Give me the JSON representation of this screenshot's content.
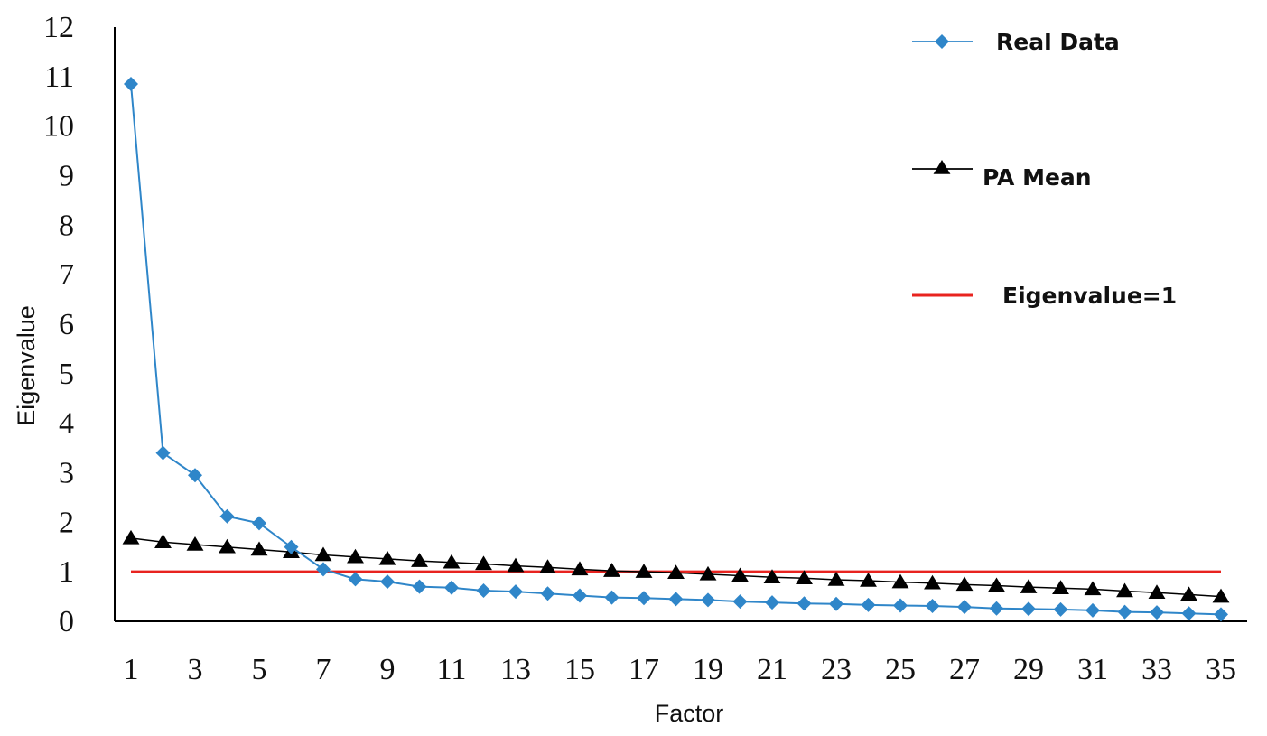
{
  "chart_data": {
    "type": "line",
    "xlabel": "Factor",
    "ylabel": "Eigenvalue",
    "x": [
      1,
      2,
      3,
      4,
      5,
      6,
      7,
      8,
      9,
      10,
      11,
      12,
      13,
      14,
      15,
      16,
      17,
      18,
      19,
      20,
      21,
      22,
      23,
      24,
      25,
      26,
      27,
      28,
      29,
      30,
      31,
      32,
      33,
      34,
      35
    ],
    "x_ticks": [
      1,
      3,
      5,
      7,
      9,
      11,
      13,
      15,
      17,
      19,
      21,
      23,
      25,
      27,
      29,
      31,
      33,
      35
    ],
    "ylim": [
      0,
      12
    ],
    "y_ticks": [
      0,
      1,
      2,
      3,
      4,
      5,
      6,
      7,
      8,
      9,
      10,
      11,
      12
    ],
    "grid": false,
    "legend_position": "top-right",
    "series": [
      {
        "name": "Real Data",
        "color": "#2f86c9",
        "marker": "diamond",
        "values": [
          10.85,
          3.4,
          2.95,
          2.12,
          1.98,
          1.5,
          1.05,
          0.85,
          0.8,
          0.7,
          0.68,
          0.62,
          0.6,
          0.56,
          0.52,
          0.48,
          0.47,
          0.45,
          0.43,
          0.4,
          0.38,
          0.36,
          0.35,
          0.33,
          0.32,
          0.31,
          0.29,
          0.26,
          0.25,
          0.24,
          0.22,
          0.19,
          0.18,
          0.16,
          0.14
        ]
      },
      {
        "name": "PA Mean",
        "color": "#000000",
        "marker": "triangle",
        "values": [
          1.68,
          1.6,
          1.55,
          1.5,
          1.45,
          1.4,
          1.34,
          1.3,
          1.26,
          1.22,
          1.19,
          1.16,
          1.12,
          1.09,
          1.05,
          1.02,
          1.0,
          0.98,
          0.95,
          0.92,
          0.89,
          0.87,
          0.84,
          0.82,
          0.79,
          0.77,
          0.74,
          0.72,
          0.69,
          0.67,
          0.65,
          0.61,
          0.58,
          0.54,
          0.5
        ]
      },
      {
        "name": "Eigenvalue=1",
        "color": "#e8231f",
        "marker": "none",
        "values": [
          1,
          1,
          1,
          1,
          1,
          1,
          1,
          1,
          1,
          1,
          1,
          1,
          1,
          1,
          1,
          1,
          1,
          1,
          1,
          1,
          1,
          1,
          1,
          1,
          1,
          1,
          1,
          1,
          1,
          1,
          1,
          1,
          1,
          1,
          1
        ]
      }
    ]
  }
}
